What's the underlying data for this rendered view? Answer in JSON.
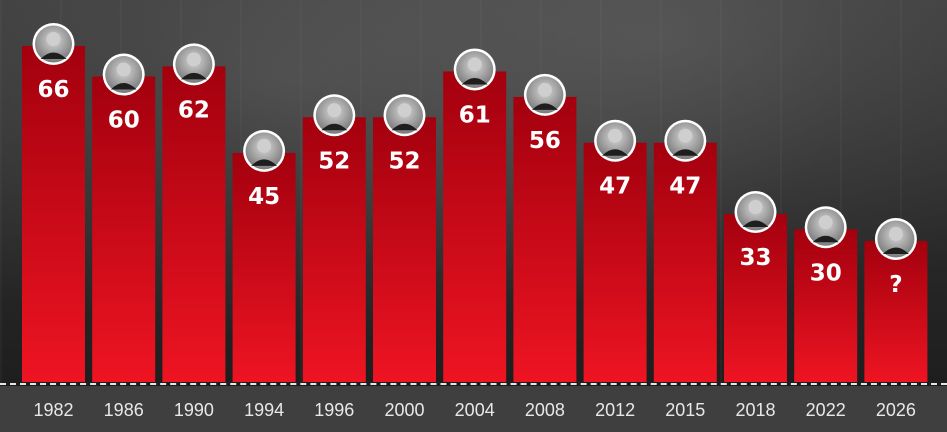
{
  "chart_data": {
    "type": "bar",
    "categories": [
      "1982",
      "1986",
      "1990",
      "1994",
      "1996",
      "2000",
      "2004",
      "2008",
      "2012",
      "2015",
      "2018",
      "2022",
      "2026"
    ],
    "values": [
      66,
      60,
      62,
      45,
      52,
      52,
      61,
      56,
      47,
      47,
      33,
      30,
      null
    ],
    "value_labels": [
      "66",
      "60",
      "62",
      "45",
      "52",
      "52",
      "61",
      "56",
      "47",
      "47",
      "33",
      "30",
      "?"
    ],
    "unverified_value_note_free_display": "?",
    "ylim": [
      0,
      66
    ],
    "grid": false,
    "legend": "none",
    "colors": {
      "bar_top": "#a3000e",
      "bar_bottom": "#ee1422",
      "value_text": "#ffffff",
      "axis_band": "#3f3f3f",
      "tick_text": "#e8e8e8",
      "baseline": "#e6e6e6"
    },
    "icons": [
      "candidate-portrait-icon"
    ]
  }
}
